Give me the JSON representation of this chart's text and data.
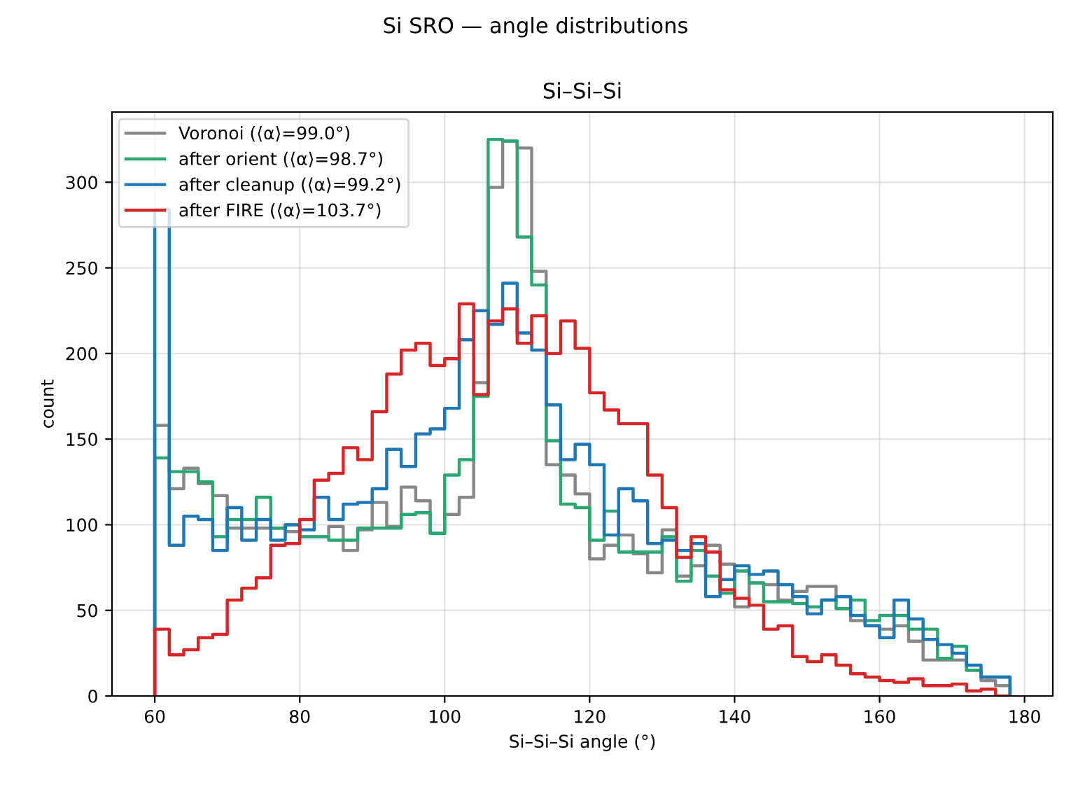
{
  "chart_data": {
    "type": "histogram",
    "title": "Si SRO — angle distributions",
    "subtitle": "Si–Si–Si",
    "xlabel": "Si–Si–Si angle (°)",
    "ylabel": "count",
    "bins": [
      60,
      62,
      64,
      66,
      68,
      70,
      72,
      74,
      76,
      78,
      80,
      82,
      84,
      86,
      88,
      90,
      92,
      94,
      96,
      98,
      100,
      102,
      104,
      106,
      108,
      110,
      112,
      114,
      116,
      118,
      120,
      122,
      124,
      126,
      128,
      130,
      132,
      134,
      136,
      138,
      140,
      142,
      144,
      146,
      148,
      150,
      152,
      154,
      156,
      158,
      160,
      162,
      164,
      166,
      168,
      170,
      172,
      174,
      176,
      178
    ],
    "series": [
      {
        "name": "Voronoi (⟨α⟩=99.0°)",
        "color": "#888888",
        "values": [
          158,
          121,
          133,
          124,
          117,
          98,
          98,
          98,
          98,
          96,
          93,
          93,
          99,
          85,
          97,
          113,
          99,
          122,
          114,
          95,
          106,
          116,
          183,
          297,
          324,
          320,
          248,
          135,
          129,
          118,
          80,
          88,
          94,
          83,
          72,
          97,
          70,
          76,
          88,
          77,
          52,
          66,
          65,
          56,
          61,
          64,
          64,
          58,
          44,
          41,
          39,
          41,
          32,
          21,
          21,
          21,
          15,
          9,
          6
        ]
      },
      {
        "name": "after orient (⟨α⟩=98.7°)",
        "color": "#2ca673",
        "values": [
          139,
          131,
          131,
          125,
          93,
          103,
          103,
          116,
          98,
          100,
          93,
          93,
          91,
          91,
          98,
          98,
          98,
          106,
          107,
          95,
          129,
          138,
          175,
          325,
          324,
          268,
          240,
          149,
          112,
          110,
          91,
          108,
          84,
          84,
          84,
          93,
          67,
          85,
          70,
          60,
          73,
          66,
          55,
          55,
          54,
          52,
          56,
          51,
          56,
          44,
          47,
          47,
          39,
          39,
          22,
          29,
          15,
          11,
          11
        ]
      },
      {
        "name": "after cleanup (⟨α⟩=99.2°)",
        "color": "#1f77b4",
        "values": [
          284,
          88,
          105,
          103,
          85,
          110,
          91,
          103,
          91,
          100,
          97,
          116,
          103,
          112,
          113,
          121,
          144,
          134,
          153,
          156,
          168,
          208,
          225,
          217,
          241,
          212,
          202,
          170,
          138,
          147,
          135,
          94,
          121,
          114,
          89,
          91,
          85,
          89,
          58,
          68,
          76,
          71,
          73,
          65,
          58,
          48,
          56,
          58,
          47,
          41,
          34,
          56,
          45,
          33,
          30,
          25,
          18,
          11,
          11
        ]
      },
      {
        "name": "after FIRE (⟨α⟩=103.7°)",
        "color": "#d62728",
        "values": [
          39,
          24,
          27,
          34,
          36,
          56,
          63,
          69,
          88,
          89,
          103,
          126,
          130,
          145,
          138,
          166,
          188,
          202,
          206,
          193,
          197,
          229,
          176,
          219,
          226,
          206,
          222,
          200,
          219,
          203,
          177,
          167,
          159,
          159,
          129,
          110,
          81,
          93,
          84,
          62,
          57,
          53,
          39,
          41,
          23,
          20,
          24,
          18,
          13,
          11,
          9,
          8,
          10,
          6,
          6,
          7,
          3,
          4,
          0
        ]
      }
    ],
    "xlim": [
      54.1,
      183.9
    ],
    "xticks": [
      60,
      80,
      100,
      120,
      140,
      160,
      180
    ],
    "ylim": [
      0,
      341
    ],
    "yticks": [
      0,
      50,
      100,
      150,
      200,
      250,
      300
    ],
    "grid": true,
    "legend": "top left"
  }
}
